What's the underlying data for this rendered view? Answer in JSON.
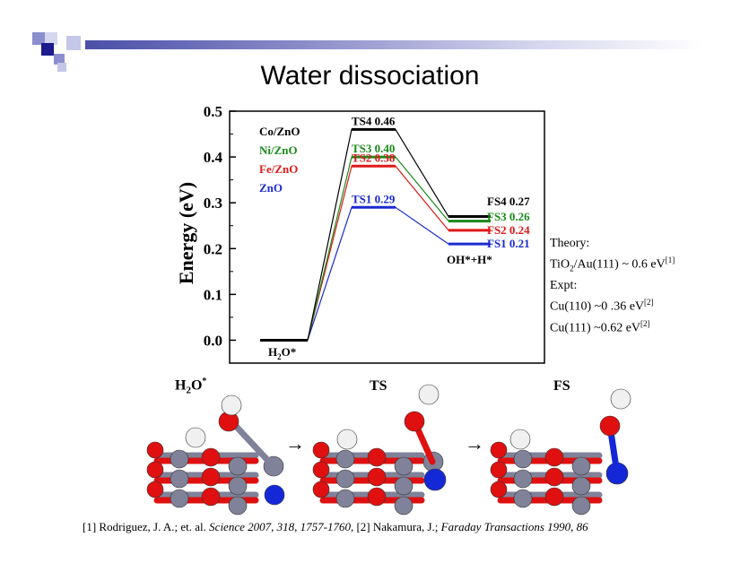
{
  "slide": {
    "title": "Water dissociation"
  },
  "chart_data": {
    "type": "line",
    "ylabel": "Energy (eV)",
    "ylim": [
      -0.05,
      0.5
    ],
    "yticks": [
      "0.0",
      "0.1",
      "0.2",
      "0.3",
      "0.4",
      "0.5"
    ],
    "states": [
      "H2O*",
      "TS",
      "FS"
    ],
    "state_labels": {
      "initial": "H",
      "initial_sub": "2",
      "initial_tail": "O*",
      "final": "OH*+H*"
    },
    "series": [
      {
        "name": "Co/ZnO",
        "color": "#000000",
        "values": [
          0.0,
          0.46,
          0.27
        ],
        "ts_label": "TS4 0.46",
        "fs_label": "FS4 0.27"
      },
      {
        "name": "Ni/ZnO",
        "color": "#1a8a1a",
        "values": [
          0.0,
          0.4,
          0.26
        ],
        "ts_label": "TS3 0.40",
        "fs_label": "FS3 0.26"
      },
      {
        "name": "Fe/ZnO",
        "color": "#e01818",
        "values": [
          0.0,
          0.38,
          0.24
        ],
        "ts_label": "TS2 0.38",
        "fs_label": "FS2 0.24"
      },
      {
        "name": "ZnO",
        "color": "#1a2ad0",
        "values": [
          0.0,
          0.29,
          0.21
        ],
        "ts_label": "TS1 0.29",
        "fs_label": "FS1 0.21"
      }
    ]
  },
  "notes": {
    "theory_label": "Theory:",
    "theory_value_a": "TiO",
    "theory_value_sub": "2",
    "theory_value_b": "/Au(111) ~ 0.6 eV",
    "theory_ref": "[1]",
    "expt_label": "Expt:",
    "expt_1": "Cu(110) ~0 .36 eV",
    "expt_1_ref": "[2]",
    "expt_2": "Cu(111) ~0.62 eV",
    "expt_2_ref": "[2]"
  },
  "structures": {
    "labels": {
      "h2o": "H",
      "h2o_sub": "2",
      "h2o_tail": "O",
      "h2o_sup": "*",
      "ts": "TS",
      "fs": "FS"
    },
    "arrow_glyph": "→"
  },
  "footer": {
    "ref1": "[1] Rodriguez, J. A.; et. al.",
    "ref1_journal": "Science 2007, 318, 1757-1760,",
    "ref2": "[2] Nakamura, J.;",
    "ref2_journal": "Faraday Transactions 1990, 86"
  },
  "colors": {
    "oxygen": "#e01010",
    "zinc": "#7f8298",
    "hydrogen": "#f0f0f0",
    "dopant": "#1428d8",
    "header_bar": "#4b4fa8"
  }
}
